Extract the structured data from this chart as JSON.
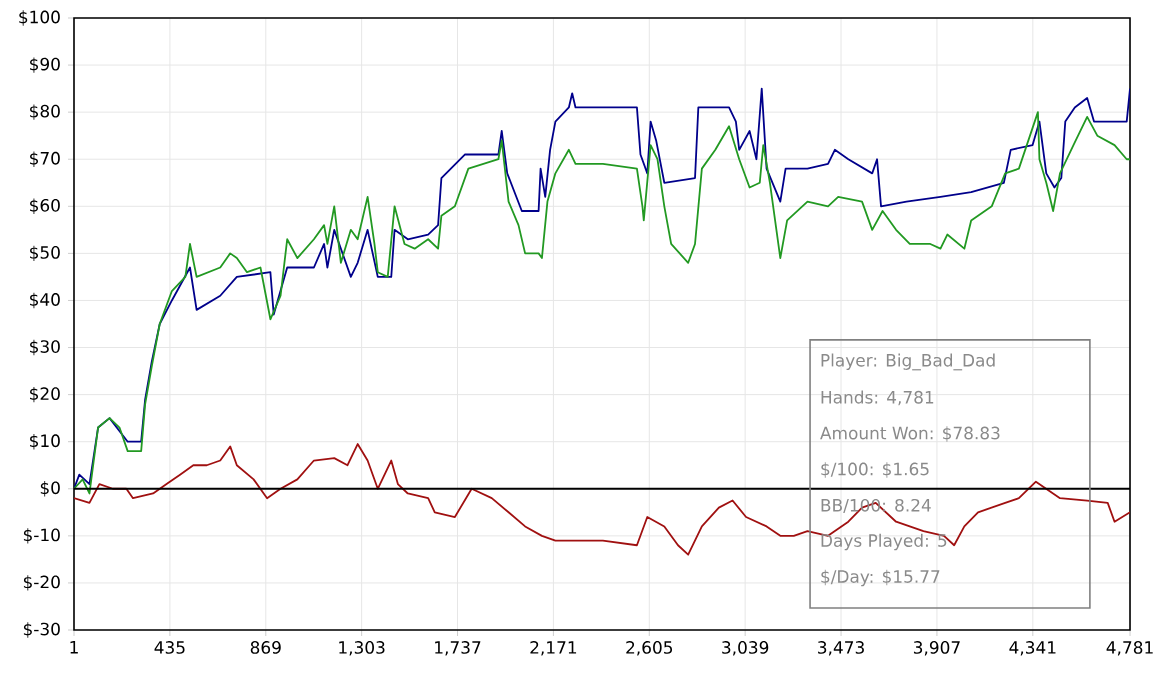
{
  "chart_data": {
    "type": "line",
    "grid": true,
    "marker": "none",
    "line_style": "solid",
    "xlim": [
      1,
      4781
    ],
    "ylim": [
      -30,
      100
    ],
    "xticks": [
      1,
      435,
      869,
      {
        "value": 1303,
        "label": "1,303"
      },
      {
        "value": 1737,
        "label": "1,737"
      },
      {
        "value": 2171,
        "label": "2,171"
      },
      {
        "value": 2605,
        "label": "2,605"
      },
      {
        "value": 3039,
        "label": "3,039"
      },
      {
        "value": 3473,
        "label": "3,473"
      },
      {
        "value": 3907,
        "label": "3,907"
      },
      {
        "value": 4341,
        "label": "4,341"
      },
      {
        "value": 4781,
        "label": "4,781"
      }
    ],
    "yticks": [
      {
        "value": -30,
        "label": "$-30"
      },
      {
        "value": -20,
        "label": "$-20"
      },
      {
        "value": -10,
        "label": "$-10"
      },
      {
        "value": 0,
        "label": "$0"
      },
      {
        "value": 10,
        "label": "$10"
      },
      {
        "value": 20,
        "label": "$20"
      },
      {
        "value": 30,
        "label": "$30"
      },
      {
        "value": 40,
        "label": "$40"
      },
      {
        "value": 50,
        "label": "$50"
      },
      {
        "value": 60,
        "label": "$60"
      },
      {
        "value": 70,
        "label": "$70"
      },
      {
        "value": 80,
        "label": "$80"
      },
      {
        "value": 90,
        "label": "$90"
      },
      {
        "value": 100,
        "label": "$100"
      }
    ],
    "ref_lines": [
      {
        "axis": "y",
        "value": 0,
        "color": "#000000"
      }
    ],
    "annotations": [
      "Player: Big_Bad_Dad",
      "Hands: 4,781",
      "Amount Won: $78.83",
      "$/100: $1.65",
      "BB/100: 8.24",
      "Days Played: 5",
      "$/Day: $15.77"
    ],
    "series": [
      {
        "color": "#00008b",
        "x": [
          1,
          25,
          71,
          110,
          162,
          244,
          305,
          323,
          353,
          389,
          444,
          526,
          556,
          663,
          738,
          890,
          905,
          966,
          1087,
          1133,
          1148,
          1179,
          1254,
          1285,
          1330,
          1376,
          1437,
          1452,
          1512,
          1604,
          1649,
          1664,
          1770,
          1922,
          1937,
          1962,
          2028,
          2104,
          2113,
          2134,
          2156,
          2180,
          2241,
          2256,
          2271,
          2395,
          2549,
          2565,
          2596,
          2611,
          2636,
          2673,
          2812,
          2827,
          2966,
          2997,
          3012,
          3059,
          3090,
          3114,
          3136,
          3198,
          3222,
          3321,
          3414,
          3445,
          3506,
          3614,
          3636,
          3654,
          3769,
          3923,
          4062,
          4210,
          4241,
          4340,
          4371,
          4402,
          4439,
          4470,
          4488,
          4531,
          4587,
          4618,
          4766,
          4781
        ],
        "values": [
          0,
          3,
          1,
          13,
          15,
          10,
          10,
          19,
          27,
          35,
          40,
          47,
          38,
          41,
          45,
          46,
          37,
          47,
          47,
          52,
          47,
          55,
          45,
          48,
          55,
          45,
          45,
          55,
          53,
          54,
          56,
          66,
          71,
          71,
          76,
          67,
          59,
          59,
          68,
          62,
          72,
          78,
          81,
          84,
          81,
          81,
          81,
          71,
          67,
          78,
          74,
          65,
          66,
          81,
          81,
          78,
          72,
          76,
          70,
          85,
          68,
          61,
          68,
          68,
          69,
          72,
          70,
          67,
          70,
          60,
          61,
          62,
          63,
          65,
          72,
          73,
          78,
          67,
          64,
          66,
          78,
          81,
          83,
          78,
          78,
          85
        ]
      },
      {
        "color": "#229922",
        "x": [
          1,
          40,
          71,
          110,
          162,
          207,
          244,
          305,
          323,
          353,
          389,
          444,
          505,
          526,
          556,
          663,
          708,
          738,
          784,
          845,
          890,
          936,
          966,
          1012,
          1087,
          1133,
          1148,
          1179,
          1209,
          1254,
          1285,
          1330,
          1361,
          1376,
          1421,
          1452,
          1497,
          1543,
          1604,
          1649,
          1664,
          1725,
          1786,
          1922,
          1937,
          1968,
          2013,
          2043,
          2104,
          2119,
          2144,
          2180,
          2241,
          2271,
          2395,
          2549,
          2574,
          2580,
          2611,
          2642,
          2673,
          2704,
          2781,
          2812,
          2843,
          2904,
          2966,
          3012,
          3059,
          3105,
          3121,
          3151,
          3198,
          3229,
          3321,
          3414,
          3460,
          3568,
          3614,
          3661,
          3722,
          3784,
          3877,
          3923,
          3954,
          4031,
          4062,
          4155,
          4216,
          4278,
          4364,
          4371,
          4402,
          4433,
          4464,
          4525,
          4587,
          4633,
          4711,
          4766,
          4781
        ],
        "values": [
          0,
          2,
          -1,
          13,
          15,
          13,
          8,
          8,
          18,
          26,
          35,
          42,
          45,
          52,
          45,
          47,
          50,
          49,
          46,
          47,
          36,
          41,
          53,
          49,
          53,
          56,
          52,
          60,
          48,
          55,
          53,
          62,
          52,
          46,
          45,
          60,
          52,
          51,
          53,
          51,
          58,
          60,
          68,
          70,
          74,
          61,
          56,
          50,
          50,
          49,
          61,
          67,
          72,
          69,
          69,
          68,
          60,
          57,
          73,
          70,
          60,
          52,
          48,
          52,
          68,
          72,
          77,
          70,
          64,
          65,
          73,
          65,
          49,
          57,
          61,
          60,
          62,
          61,
          55,
          59,
          55,
          52,
          52,
          51,
          54,
          51,
          57,
          60,
          67,
          68,
          80,
          70,
          65,
          59,
          67,
          73,
          79,
          75,
          73,
          70,
          70
        ]
      },
      {
        "color": "#a01010",
        "x": [
          1,
          71,
          116,
          177,
          238,
          268,
          359,
          420,
          481,
          541,
          602,
          663,
          708,
          738,
          814,
          875,
          936,
          1012,
          1087,
          1179,
          1239,
          1285,
          1330,
          1376,
          1437,
          1467,
          1512,
          1604,
          1634,
          1725,
          1801,
          1892,
          1968,
          2043,
          2119,
          2180,
          2271,
          2395,
          2549,
          2596,
          2673,
          2735,
          2781,
          2843,
          2920,
          2982,
          3043,
          3136,
          3198,
          3259,
          3321,
          3414,
          3506,
          3568,
          3630,
          3722,
          3846,
          3939,
          3985,
          4031,
          4093,
          4216,
          4278,
          4355,
          4464,
          4587,
          4680,
          4711,
          4781
        ],
        "values": [
          -2,
          -3,
          1,
          0,
          0,
          -2,
          -1,
          1,
          3,
          5,
          5,
          6,
          9,
          5,
          2,
          -2,
          0,
          2,
          6,
          6.5,
          5,
          9.5,
          6,
          0,
          6,
          1,
          -1,
          -2,
          -5,
          -6,
          0,
          -2,
          -5,
          -8,
          -10,
          -11,
          -11,
          -11,
          -12,
          -6,
          -8,
          -12,
          -14,
          -8,
          -4,
          -2.5,
          -6,
          -8,
          -10,
          -10,
          -9,
          -10,
          -7,
          -4,
          -3,
          -7,
          -9,
          -10,
          -12,
          -8,
          -5,
          -3,
          -2,
          1.5,
          -2,
          -2.5,
          -3,
          -7,
          -5
        ]
      }
    ]
  }
}
